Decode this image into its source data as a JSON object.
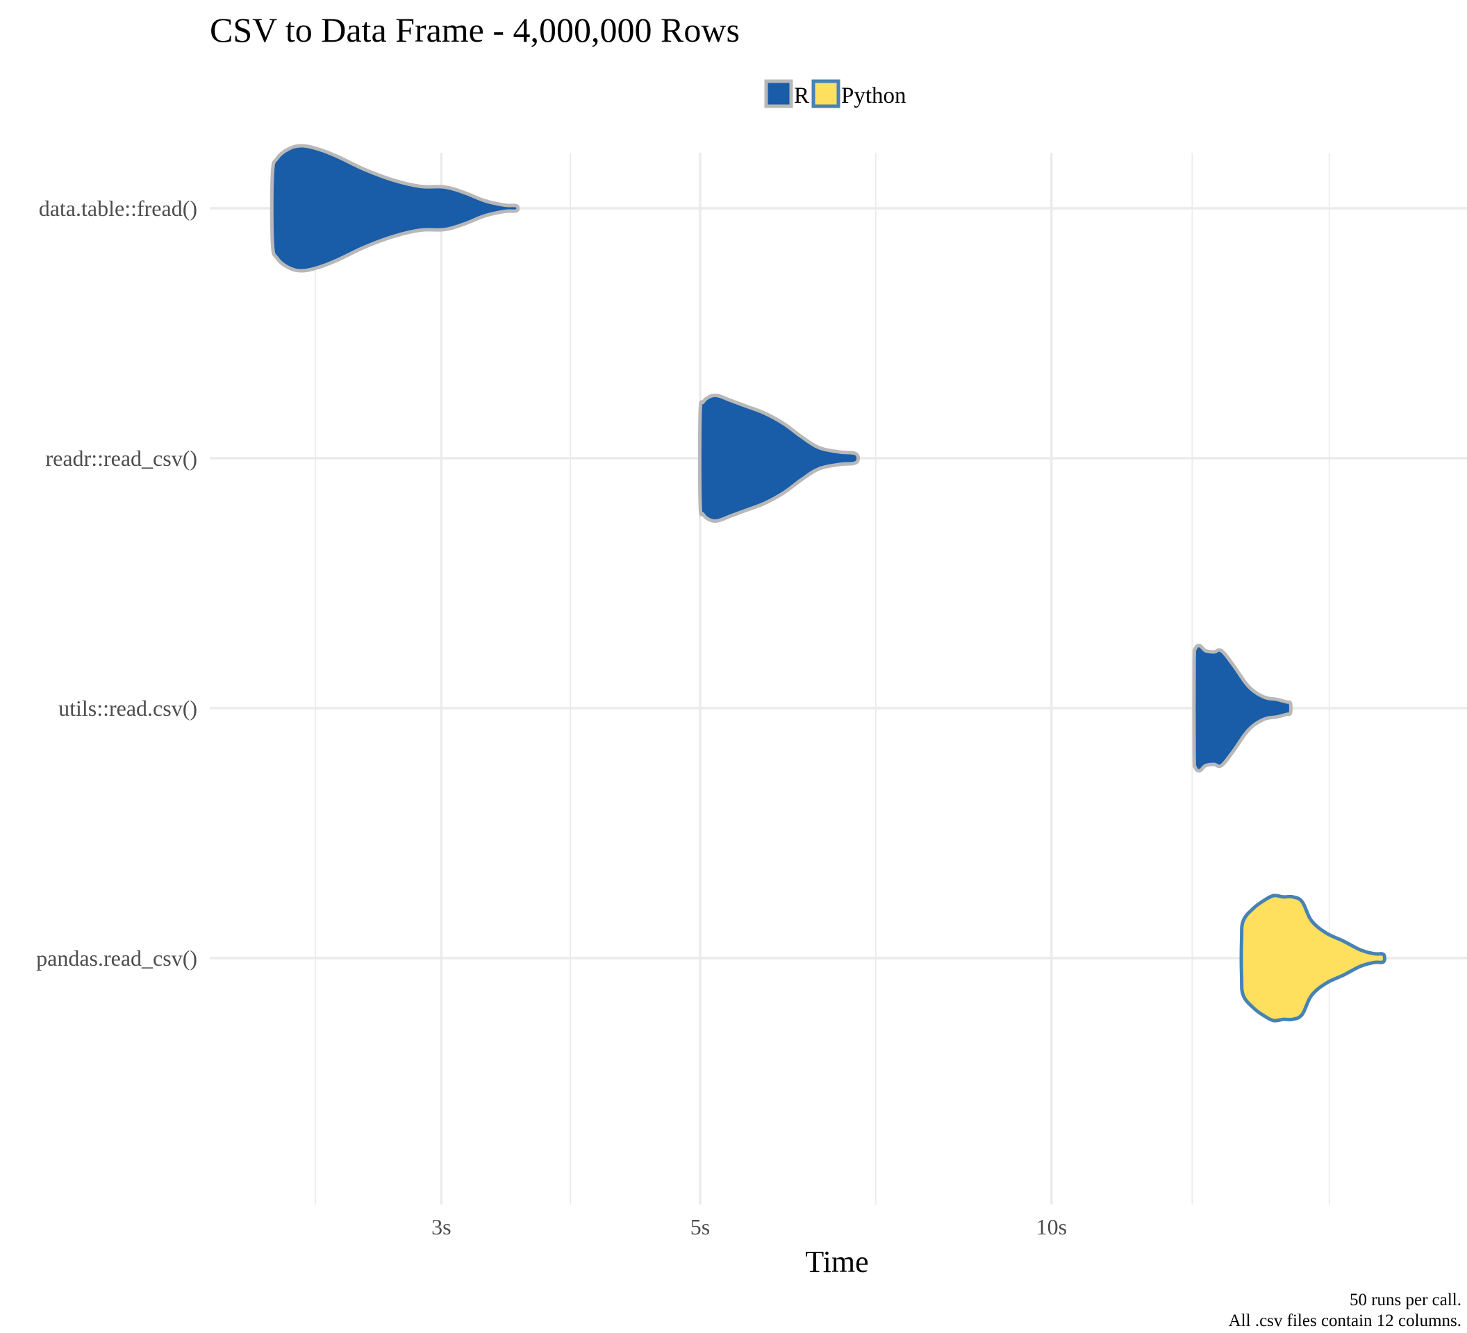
{
  "colors": {
    "R": {
      "fill": "#195ca8",
      "stroke": "#b8b8b8"
    },
    "Python": {
      "fill": "#fedf5e",
      "stroke": "#4682b4"
    }
  },
  "chart_data": {
    "type": "violin",
    "title": "CSV to Data Frame - 4,000,000 Rows",
    "xlabel": "Time",
    "ylabel": "",
    "x_scale": "log",
    "xlim": [
      1.9,
      22.7
    ],
    "x_ticks": [
      {
        "value": 3,
        "label": "3s"
      },
      {
        "value": 5,
        "label": "5s"
      },
      {
        "value": 10,
        "label": "10s"
      }
    ],
    "x_minor_ticks": [
      2.34,
      3.87,
      7.07,
      13.2,
      17.3
    ],
    "legend": {
      "position": "top",
      "entries": [
        "R",
        "Python"
      ]
    },
    "caption": [
      "50 runs per call.",
      "All .csv files contain 12 columns."
    ],
    "grid": true,
    "categories": [
      "data.table::fread()",
      "readr::read_csv()",
      "utils::read.csv()",
      "pandas.read_csv()"
    ],
    "series": [
      {
        "category": "data.table::fread()",
        "language": "R",
        "density": [
          [
            2.15,
            0.55
          ],
          [
            2.17,
            0.8
          ],
          [
            2.22,
            0.95
          ],
          [
            2.28,
            1.0
          ],
          [
            2.36,
            0.94
          ],
          [
            2.45,
            0.82
          ],
          [
            2.58,
            0.62
          ],
          [
            2.73,
            0.45
          ],
          [
            2.88,
            0.35
          ],
          [
            3.02,
            0.34
          ],
          [
            3.14,
            0.25
          ],
          [
            3.27,
            0.12
          ],
          [
            3.4,
            0.05
          ],
          [
            3.48,
            0.04
          ]
        ]
      },
      {
        "category": "readr::read_csv()",
        "language": "R",
        "density": [
          [
            5.0,
            0.72
          ],
          [
            5.03,
            0.9
          ],
          [
            5.1,
            0.99
          ],
          [
            5.18,
            1.0
          ],
          [
            5.3,
            0.93
          ],
          [
            5.48,
            0.83
          ],
          [
            5.68,
            0.72
          ],
          [
            5.9,
            0.55
          ],
          [
            6.1,
            0.35
          ],
          [
            6.32,
            0.17
          ],
          [
            6.58,
            0.1
          ],
          [
            6.8,
            0.07
          ]
        ]
      },
      {
        "category": "utils::read.csv()",
        "language": "R",
        "density": [
          [
            13.25,
            0.72
          ],
          [
            13.28,
            0.95
          ],
          [
            13.4,
            1.0
          ],
          [
            13.55,
            0.92
          ],
          [
            13.78,
            0.9
          ],
          [
            13.98,
            0.92
          ],
          [
            14.3,
            0.7
          ],
          [
            14.75,
            0.35
          ],
          [
            15.2,
            0.18
          ],
          [
            15.6,
            0.14
          ],
          [
            15.9,
            0.1
          ],
          [
            16.02,
            0.08
          ]
        ]
      },
      {
        "category": "pandas.read_csv()",
        "language": "Python",
        "density": [
          [
            14.55,
            0.3
          ],
          [
            14.6,
            0.6
          ],
          [
            14.9,
            0.8
          ],
          [
            15.2,
            0.92
          ],
          [
            15.5,
            1.0
          ],
          [
            15.8,
            0.98
          ],
          [
            16.1,
            0.98
          ],
          [
            16.4,
            0.9
          ],
          [
            16.7,
            0.6
          ],
          [
            17.2,
            0.4
          ],
          [
            17.8,
            0.27
          ],
          [
            18.4,
            0.13
          ],
          [
            18.9,
            0.07
          ],
          [
            19.25,
            0.06
          ]
        ]
      }
    ]
  }
}
